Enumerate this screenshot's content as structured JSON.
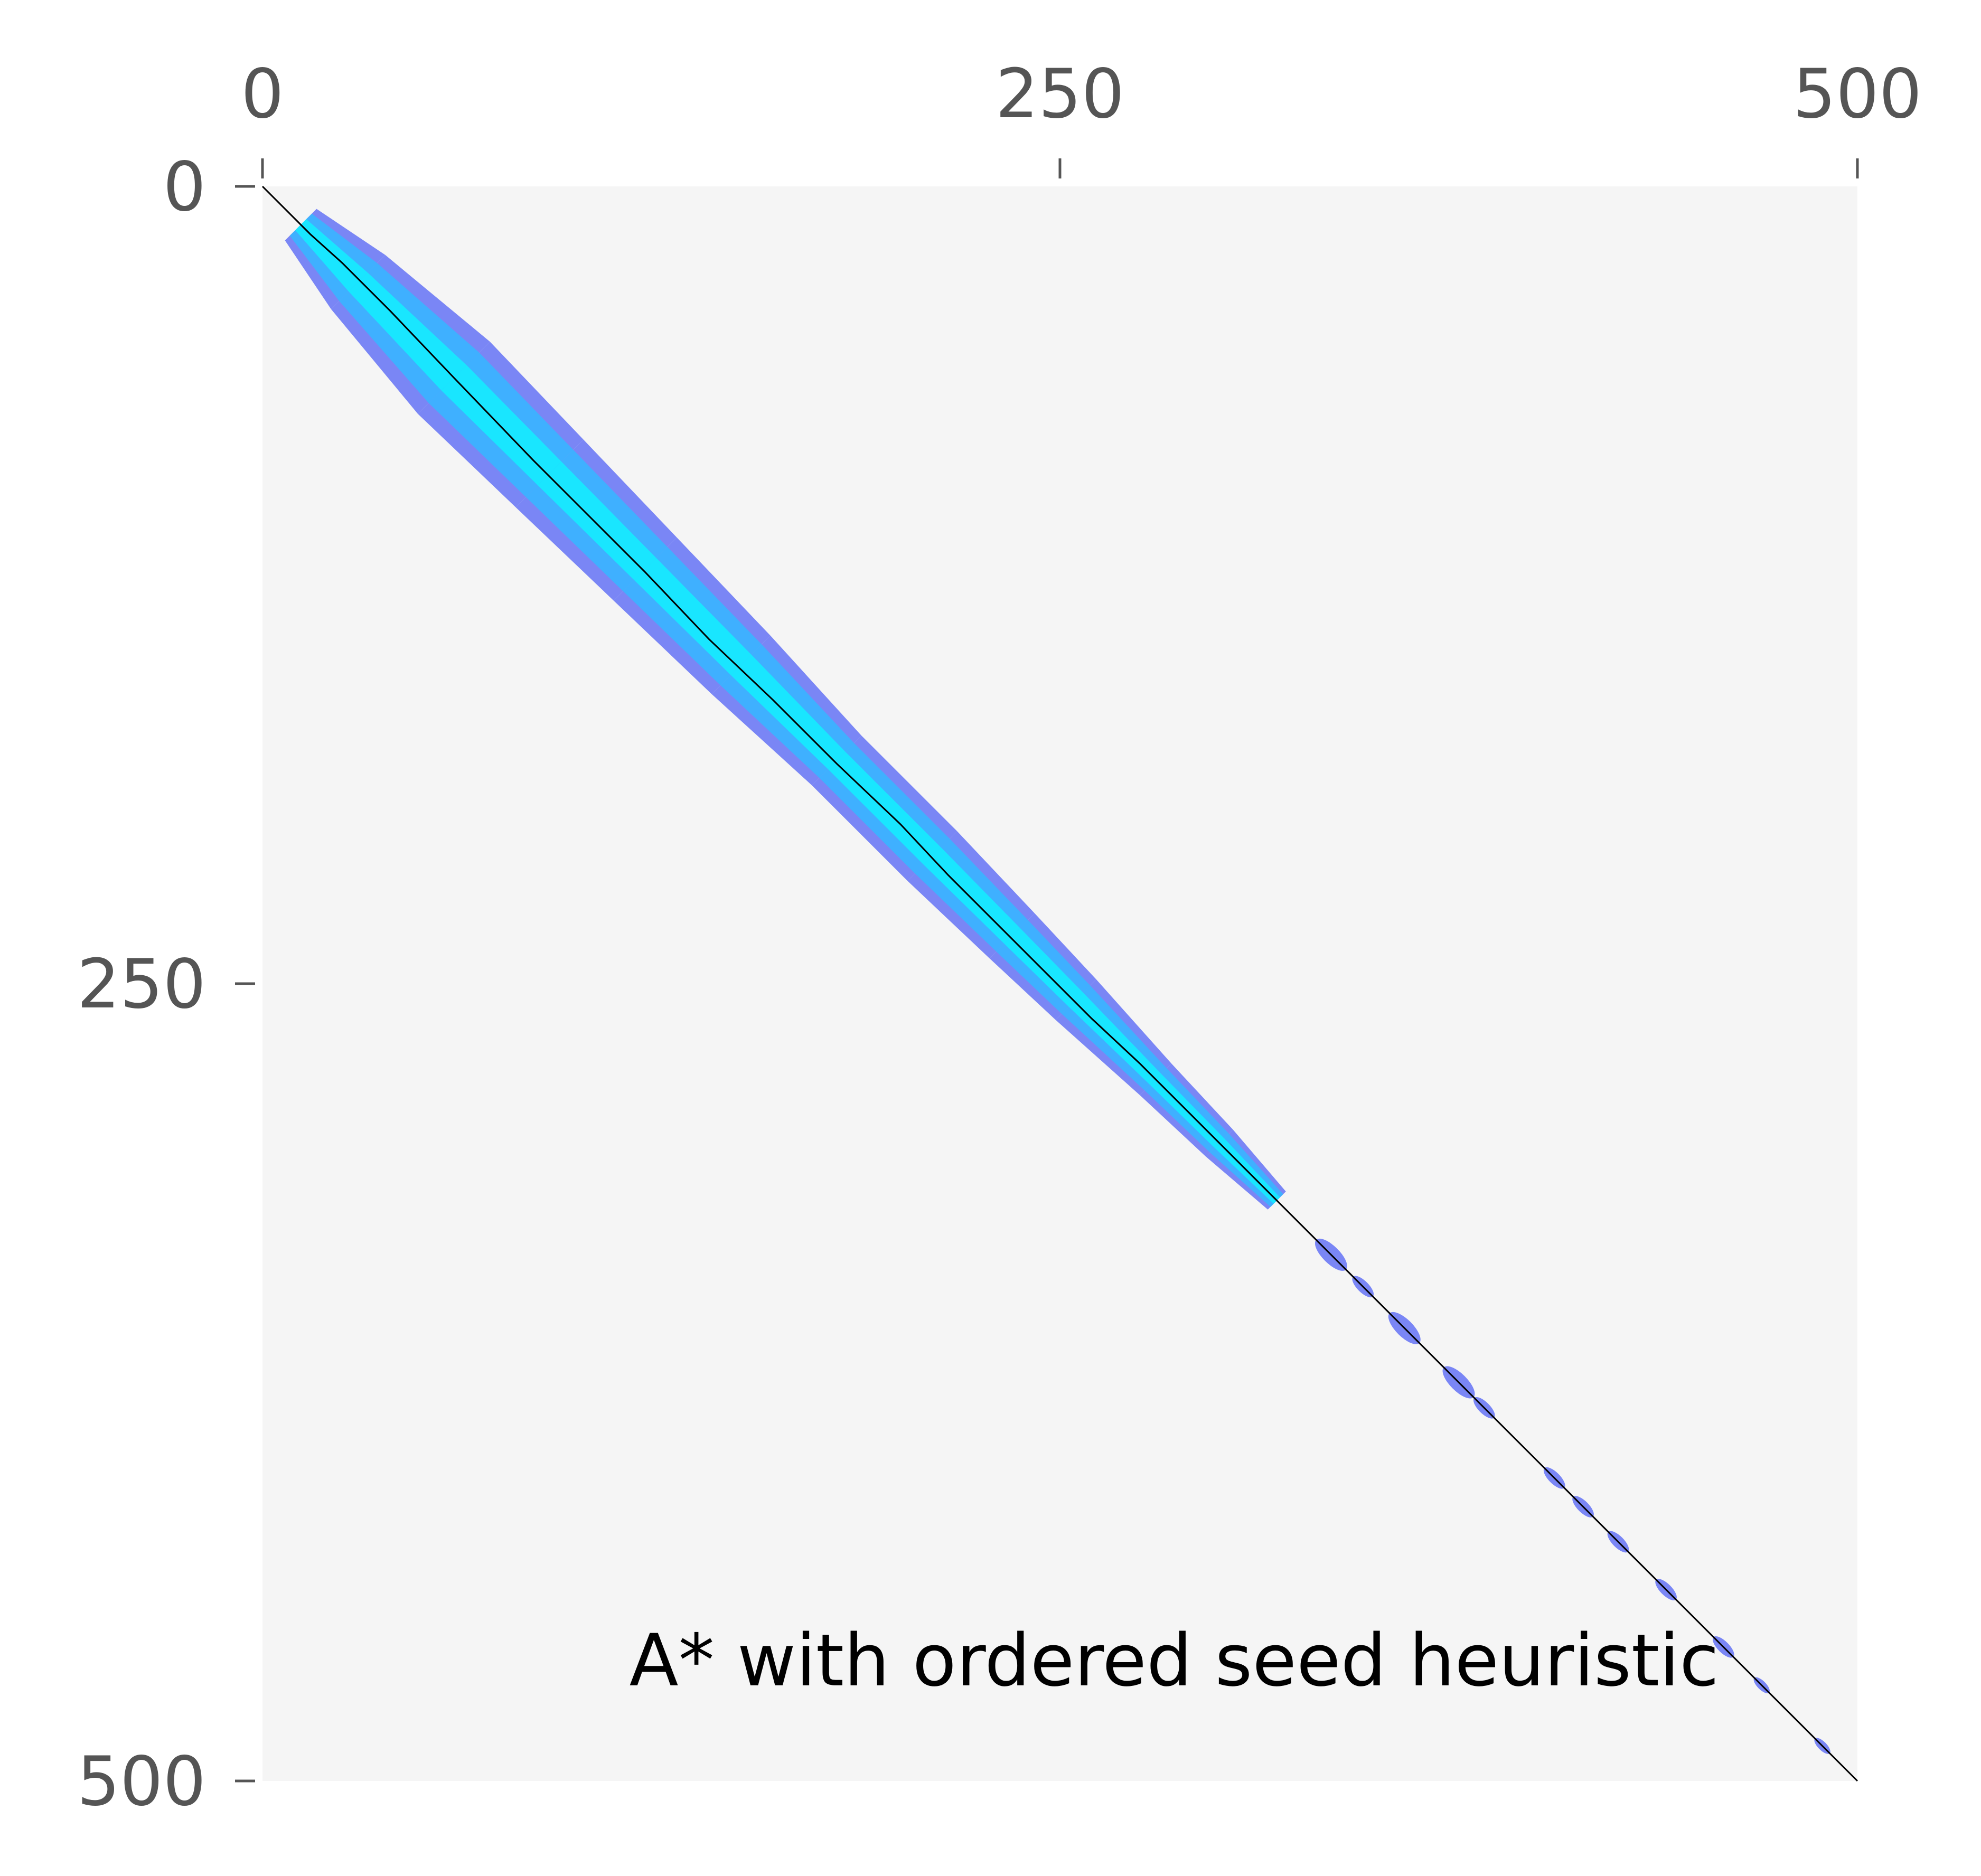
{
  "chart_data": {
    "type": "heatmap",
    "title": "",
    "xlabel": "",
    "ylabel": "",
    "xlim": [
      0,
      500
    ],
    "ylim": [
      500,
      0
    ],
    "x_ticks": [
      "0",
      "250",
      "500"
    ],
    "y_ticks": [
      "0",
      "250",
      "500"
    ],
    "x_tick_values": [
      0,
      250,
      500
    ],
    "y_tick_values": [
      0,
      250,
      500
    ],
    "x_axis_position": "top",
    "grid": false,
    "background_color": "#f5f5f5",
    "annotation": "A* with ordered seed heuristic",
    "annotation_position": [
      115,
      470
    ],
    "colors": {
      "explored_core": "#19e6ff",
      "explored_mid": "#3fb0ff",
      "explored_edge": "#7a86f5",
      "path": "#000000"
    },
    "explored_band": [
      {
        "t": 12,
        "w": 7
      },
      {
        "t": 30,
        "w": 12
      },
      {
        "t": 60,
        "w": 16
      },
      {
        "t": 90,
        "w": 15
      },
      {
        "t": 120,
        "w": 14
      },
      {
        "t": 150,
        "w": 13
      },
      {
        "t": 180,
        "w": 11
      },
      {
        "t": 210,
        "w": 11
      },
      {
        "t": 235,
        "w": 10
      },
      {
        "t": 255,
        "w": 9
      },
      {
        "t": 280,
        "w": 7
      },
      {
        "t": 300,
        "w": 6
      },
      {
        "t": 318,
        "w": 4
      }
    ],
    "explored_blobs": [
      {
        "t": 335,
        "w": 3
      },
      {
        "t": 345,
        "w": 2
      },
      {
        "t": 358,
        "w": 3
      },
      {
        "t": 375,
        "w": 3
      },
      {
        "t": 383,
        "w": 2
      },
      {
        "t": 405,
        "w": 2
      },
      {
        "t": 414,
        "w": 2
      },
      {
        "t": 425,
        "w": 2
      },
      {
        "t": 440,
        "w": 2
      },
      {
        "t": 458,
        "w": 2
      },
      {
        "t": 470,
        "w": 1.5
      },
      {
        "t": 489,
        "w": 1.5
      }
    ],
    "path": {
      "x": [
        0,
        15,
        25,
        40,
        60,
        85,
        100,
        120,
        140,
        160,
        180,
        200,
        215,
        230,
        245,
        260,
        275,
        290,
        305,
        320,
        340,
        360,
        380,
        400,
        420,
        440,
        460,
        480,
        500
      ],
      "y": [
        0,
        15,
        24,
        39,
        60,
        86,
        101,
        121,
        142,
        161,
        181,
        200,
        216,
        231,
        246,
        261,
        275,
        290,
        305,
        320,
        340,
        360,
        380,
        400,
        420,
        440,
        460,
        480,
        500
      ]
    }
  }
}
